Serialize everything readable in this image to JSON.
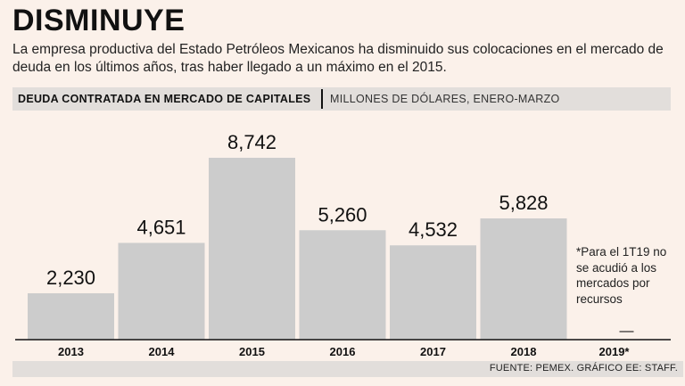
{
  "header": {
    "title": "DISMINUYE",
    "subtitle": "La empresa productiva del Estado Petróleos Mexicanos ha disminuido sus colocaciones en el mercado de deuda en los últimos años, tras haber llegado a un máximo en el 2015."
  },
  "band": {
    "main": "DEUDA CONTRATADA EN MERCADO DE CAPITALES",
    "sub": "MILLONES DE DÓLARES, ENERO-MARZO"
  },
  "note": "*Para el 1T19 no se acudió a los mercados por recursos",
  "missing_marker": "—",
  "source": "FUENTE: PEMEX. GRÁFICO EE: STAFF.",
  "colors": {
    "bar": "#cccccc",
    "background": "#fbf1ea",
    "band": "#e2dedb"
  },
  "chart_data": {
    "type": "bar",
    "categories": [
      "2013",
      "2014",
      "2015",
      "2016",
      "2017",
      "2018",
      "2019*"
    ],
    "values": [
      2230,
      4651,
      8742,
      5260,
      4532,
      5828,
      null
    ],
    "labels": [
      "2,230",
      "4,651",
      "8,742",
      "5,260",
      "4,532",
      "5,828",
      ""
    ],
    "ylim": [
      0,
      8742
    ],
    "grid": false,
    "legend": "none"
  }
}
